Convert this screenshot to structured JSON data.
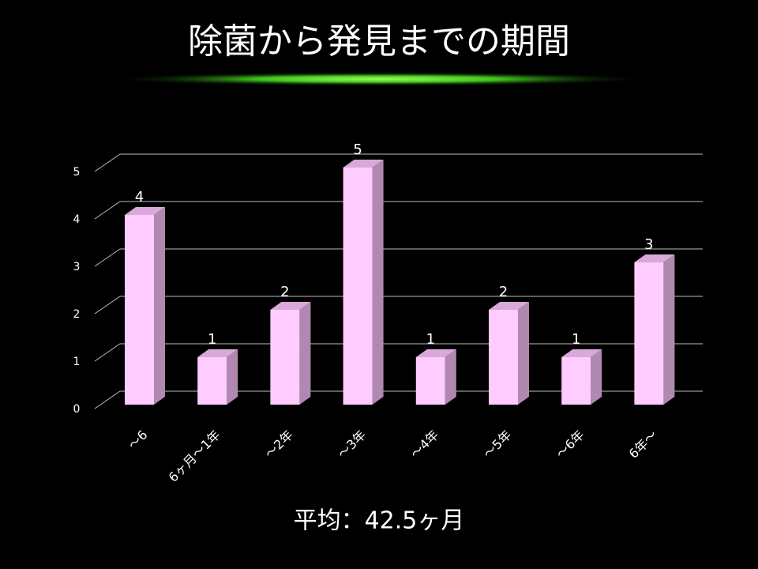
{
  "chart_data": {
    "type": "bar3d",
    "title": "除菌から発見までの期間",
    "annotation": "平均：42.5ヶ月",
    "categories": [
      "～6",
      "6ヶ月～1年",
      "～2年",
      "～3年",
      "～4年",
      "～5年",
      "～6年",
      "6年～"
    ],
    "values": [
      4,
      1,
      2,
      5,
      1,
      2,
      1,
      3
    ],
    "color": "#ffccff",
    "ylim": [
      0,
      5
    ],
    "yticks": [
      0,
      1,
      2,
      3,
      4,
      5
    ],
    "grid": true
  }
}
